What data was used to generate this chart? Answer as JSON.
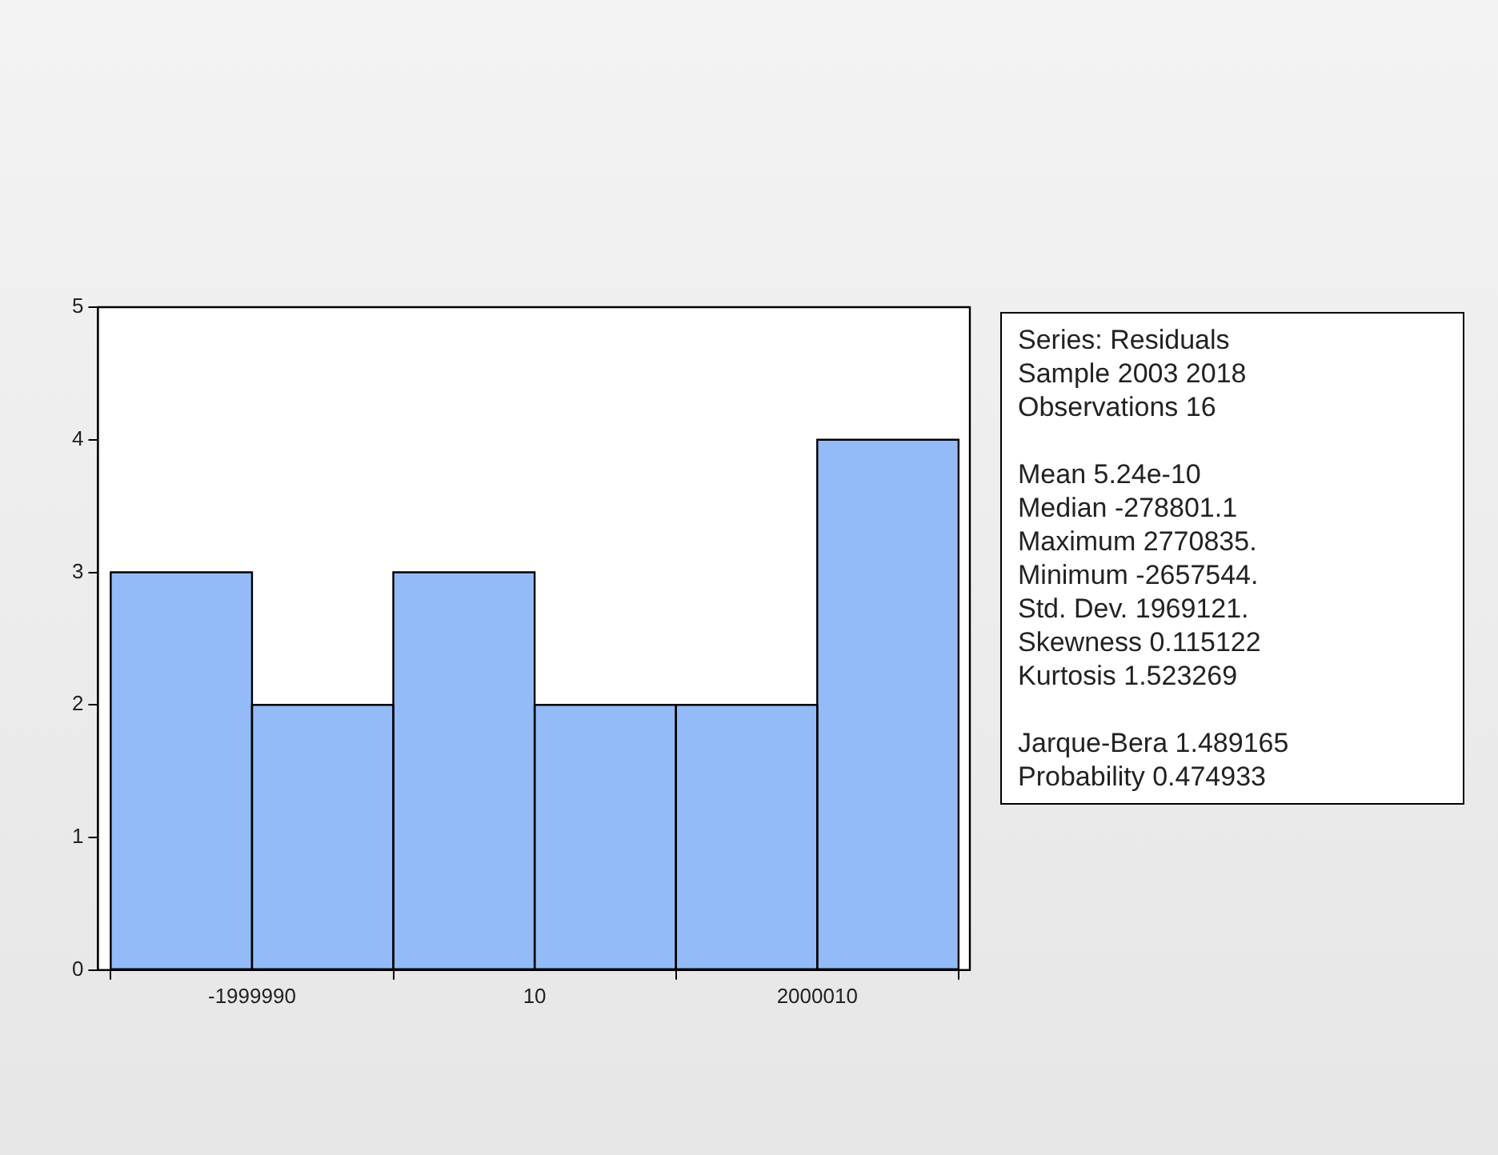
{
  "chart_data": {
    "type": "histogram",
    "bins": [
      -2999990,
      -1999990,
      -999990,
      10,
      1000010,
      2000010,
      3000010
    ],
    "values": [
      3,
      2,
      3,
      2,
      2,
      4
    ],
    "color": "#93bbf8",
    "xlim": [
      -3090000,
      3080000
    ],
    "xticks": [
      -1999990,
      10,
      2000010
    ],
    "ylim": [
      0,
      5
    ],
    "yticks": [
      0,
      1,
      2,
      3,
      4,
      5
    ],
    "legend": false,
    "annotations": [
      "Series: Residuals",
      "Sample 2003 2018",
      "Observations 16",
      "Mean 5.24e-10",
      "Median -278801.1",
      "Maximum 2770835.",
      "Minimum -2657544.",
      "Std. Dev. 1969121.",
      "Skewness 0.115122",
      "Kurtosis 1.523269",
      "Jarque-Bera 1.489165",
      "Probability 0.474933"
    ]
  }
}
